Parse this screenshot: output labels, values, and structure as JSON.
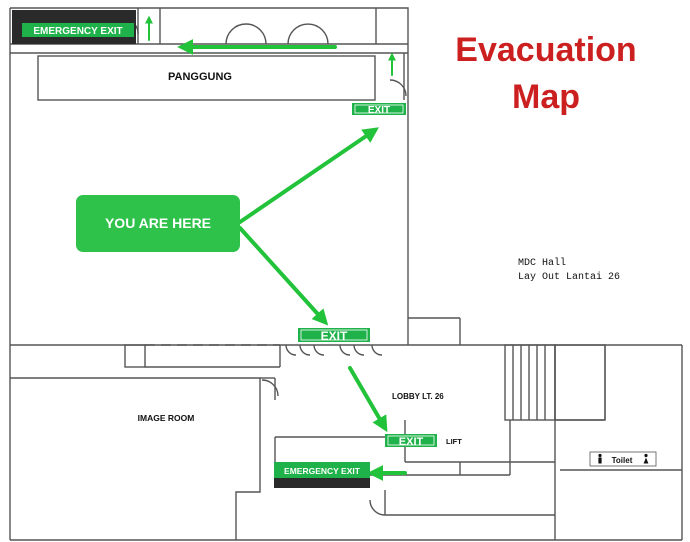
{
  "title": {
    "line1": "Evacuation",
    "line2": "Map"
  },
  "venue": {
    "name": "MDC Hall",
    "layout": "Lay Out Lantai 26"
  },
  "marker": {
    "label": "YOU ARE HERE"
  },
  "rooms": {
    "stage": "PANGGUNG",
    "image_room": "IMAGE ROOM",
    "lobby": "LOBBY LT. 26",
    "lift": "LIFT",
    "toilet": "Toilet"
  },
  "exits": {
    "emergency_top": "EMERGENCY EXIT",
    "emergency_bottom": "EMERGENCY EXIT",
    "exit_right": "EXIT",
    "exit_middle": "EXIT",
    "exit_lobby": "EXIT"
  },
  "colors": {
    "title": "#cc1f1f",
    "route": "#22c33a",
    "marker_fill": "#2ec24a",
    "exit_sign": "#1fb24a",
    "emergency_bg": "#2a2a2a",
    "wall": "#555555"
  },
  "icons": {
    "route_arrow": "arrow-icon",
    "toilet": "person-icon"
  }
}
